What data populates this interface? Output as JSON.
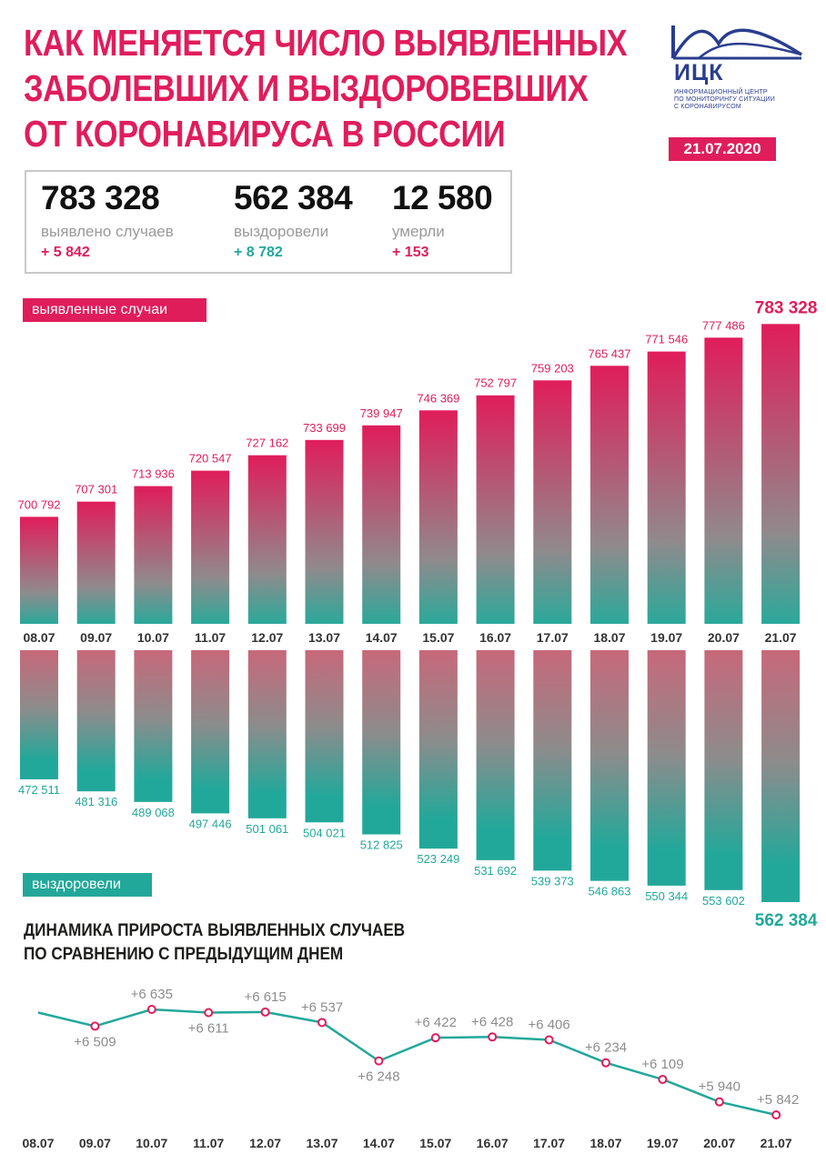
{
  "header": {
    "title_lines": [
      "КАК МЕНЯЕТСЯ ЧИСЛО ВЫЯВЛЕННЫХ",
      "ЗАБОЛЕВШИХ И ВЫЗДОРОВЕВШИХ",
      "ОТ КОРОНАВИРУСА В РОССИИ"
    ],
    "date": "21.07.2020"
  },
  "logo": {
    "name": "ИЦК",
    "subtitle_lines": [
      "ИНФОРМАЦИОННЫЙ ЦЕНТР",
      "ПО МОНИТОРИНГУ СИТУАЦИИ",
      "С КОРОНАВИРУСОМ"
    ],
    "icon": "mountain-wave-logo-icon",
    "color": "#2a3d8f"
  },
  "summary": {
    "cases": {
      "value": "783 328",
      "label": "выявлено случаев",
      "delta": "+ 5 842"
    },
    "recovered": {
      "value": "562 384",
      "label": "выздоровели",
      "delta": "+ 8 782"
    },
    "deaths": {
      "value": "12 580",
      "label": "умерли",
      "delta": "+ 153"
    }
  },
  "colors": {
    "pink": "#e01d5b",
    "teal": "#22a89a",
    "grey_text": "#9a9a9a",
    "line_grey": "#8c8c8c"
  },
  "labels": {
    "cases_tag": "выявленные случаи",
    "recovered_tag": "выздоровели",
    "dynamics_title_lines": [
      "ДИНАМИКА ПРИРОСТА ВЫЯВЛЕННЫХ СЛУЧАЕВ",
      "ПО СРАВНЕНИЮ С ПРЕДЫДУЩИМ ДНЕМ"
    ]
  },
  "chart_data": [
    {
      "type": "bar",
      "series": [
        {
          "name": "выявленные случаи",
          "values": [
            700792,
            707301,
            713936,
            720547,
            727162,
            733699,
            739947,
            746369,
            752797,
            759203,
            765437,
            771546,
            777486,
            783328
          ]
        }
      ],
      "categories": [
        "08.07",
        "09.07",
        "10.07",
        "11.07",
        "12.07",
        "13.07",
        "14.07",
        "15.07",
        "16.07",
        "17.07",
        "18.07",
        "19.07",
        "20.07",
        "21.07"
      ],
      "value_labels": [
        "700 792",
        "707 301",
        "713 936",
        "720 547",
        "727 162",
        "733 699",
        "739 947",
        "746 369",
        "752 797",
        "759 203",
        "765 437",
        "771 546",
        "777 486",
        "783 328"
      ],
      "ylim": [
        655000,
        785000
      ]
    },
    {
      "type": "bar",
      "orientation": "downward",
      "series": [
        {
          "name": "выздоровели",
          "values": [
            472511,
            481316,
            489068,
            497446,
            501061,
            504021,
            512825,
            523249,
            531692,
            539373,
            546863,
            550344,
            553602,
            562384
          ]
        }
      ],
      "categories": [
        "08.07",
        "09.07",
        "10.07",
        "11.07",
        "12.07",
        "13.07",
        "14.07",
        "15.07",
        "16.07",
        "17.07",
        "18.07",
        "19.07",
        "20.07",
        "21.07"
      ],
      "value_labels": [
        "472 511",
        "481 316",
        "489 068",
        "497 446",
        "501 061",
        "504 021",
        "512 825",
        "523 249",
        "531 692",
        "539 373",
        "546 863",
        "550 344",
        "553 602",
        "562 384"
      ],
      "ylim": [
        378000,
        562384
      ]
    },
    {
      "type": "line",
      "x": [
        "08.07",
        "09.07",
        "10.07",
        "11.07",
        "12.07",
        "13.07",
        "14.07",
        "15.07",
        "16.07",
        "17.07",
        "18.07",
        "19.07",
        "20.07",
        "21.07"
      ],
      "y": [
        6611,
        6509,
        6635,
        6611,
        6615,
        6537,
        6248,
        6422,
        6428,
        6406,
        6234,
        6109,
        5940,
        5842
      ],
      "point_labels": [
        "",
        "+6 509",
        "+6 635",
        "+6 611",
        "+6 615",
        "+6 537",
        "+6 248",
        "+6 422",
        "+6 428",
        "+6 406",
        "+6 234",
        "+6 109",
        "+5 940",
        "+5 842"
      ],
      "ylim": [
        5842,
        6635
      ]
    }
  ]
}
